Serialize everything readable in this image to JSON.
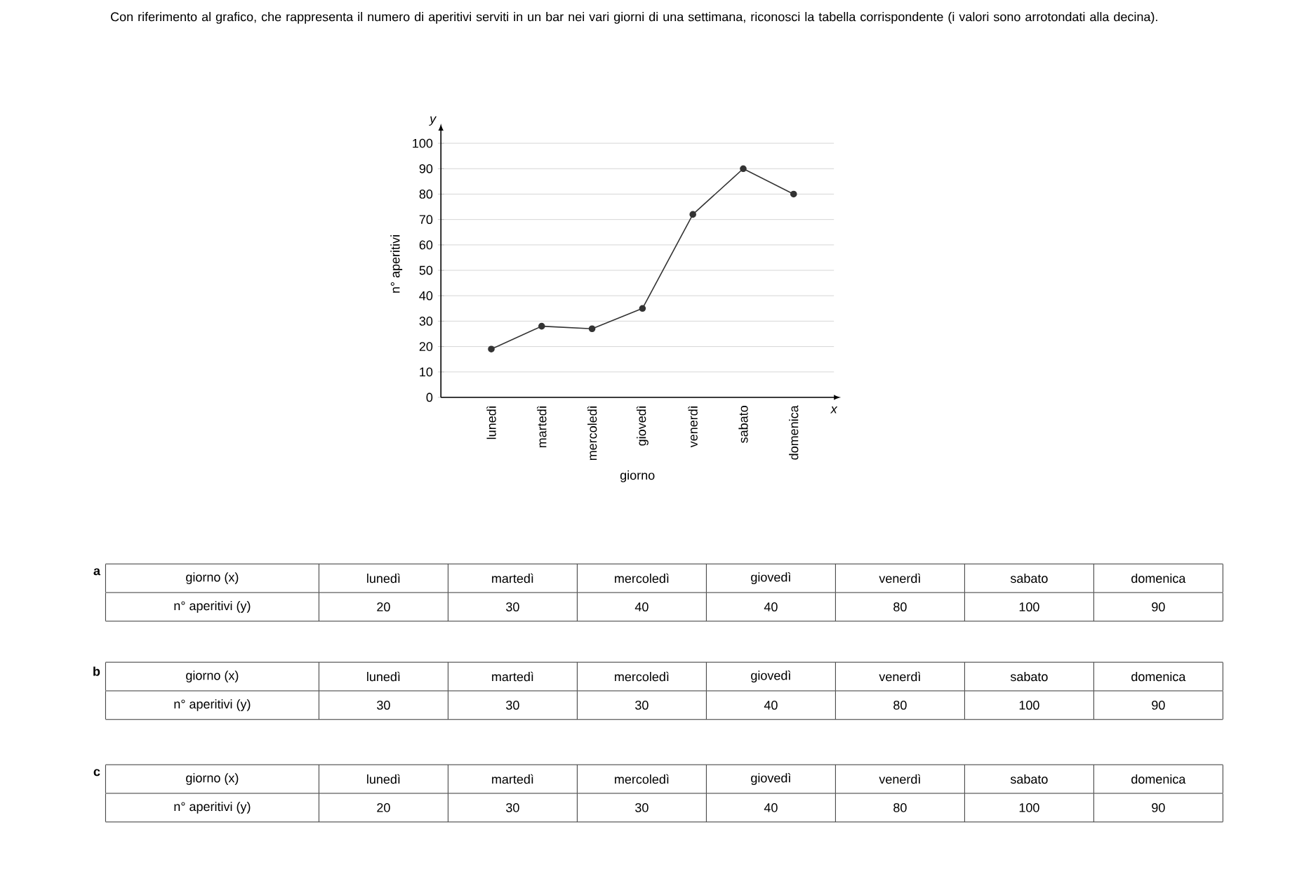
{
  "chart_data": {
    "type": "line",
    "title": "Con riferimento al grafico, che rappresenta il numero di aperitivi serviti in un bar nei vari giorni di una settimana, riconosci la tabella corrispondente (i valori sono arrotondati alla decina).",
    "xlabel": "giorno",
    "ylabel": "n° aperitivi",
    "categories": [
      "lunedì",
      "martedì",
      "mercoledì",
      "giovedì",
      "venerdì",
      "sabato",
      "domenica"
    ],
    "values": [
      19,
      28,
      27,
      35,
      72,
      90,
      80
    ],
    "color": "#333333",
    "marker": "circle",
    "grid": "y",
    "ylim": [
      0,
      105
    ],
    "yticks": [
      0,
      10,
      20,
      30,
      40,
      50,
      60,
      70,
      80,
      90,
      100
    ],
    "annotations": [
      "y",
      "x",
      "a",
      "giorno (x)",
      "lunedì",
      "martedì",
      "mercoledì",
      "giovedì",
      "venerdì",
      "sabato",
      "domenica",
      "n° aperitivi (y)",
      "20",
      "30",
      "40",
      "40",
      "80",
      "100",
      "90",
      "b",
      "giorno (x)",
      "lunedì",
      "martedì",
      "mercoledì",
      "giovedì",
      "venerdì",
      "sabato",
      "domenica",
      "n° aperitivi (y)",
      "30",
      "30",
      "30",
      "40",
      "80",
      "100",
      "90",
      "c",
      "giorno (x)",
      "lunedì",
      "martedì",
      "mercoledì",
      "giovedì",
      "venerdì",
      "sabato",
      "domenica",
      "n° aperitivi (y)",
      "20",
      "30",
      "30",
      "40",
      "80",
      "100",
      "90"
    ]
  }
}
